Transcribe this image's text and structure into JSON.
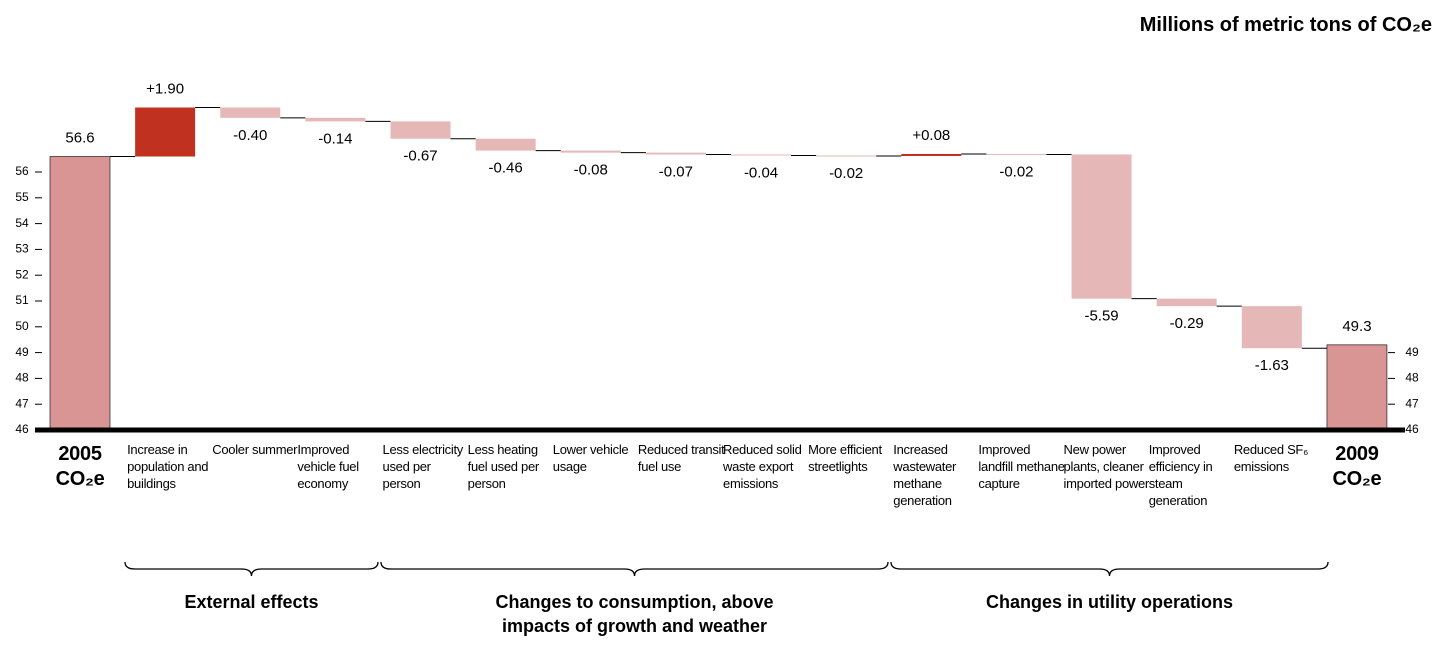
{
  "chart_data": {
    "type": "waterfall",
    "title": "Millions of metric tons of CO₂e",
    "categories": [
      "2005 CO₂e",
      "Increase in population and buildings",
      "Cooler summer",
      "Improved vehicle fuel economy",
      "Less electricity used per person",
      "Less heating fuel used per person",
      "Lower vehicle usage",
      "Reduced transit fuel use",
      "Reduced solid waste export emissions",
      "More efficient streetlights",
      "Increased wastewater methane generation",
      "Improved landfill methane capture",
      "New power plants, cleaner imported power",
      "Improved efficiency in steam generation",
      "Reduced SF₆ emissions",
      "2009 CO₂e"
    ],
    "values": [
      56.6,
      1.9,
      -0.4,
      -0.14,
      -0.67,
      -0.46,
      -0.08,
      -0.07,
      -0.04,
      -0.02,
      0.08,
      -0.02,
      -5.59,
      -0.29,
      -1.63,
      49.3
    ],
    "value_labels": [
      "56.6",
      "+1.90",
      "-0.40",
      "-0.14",
      "-0.67",
      "-0.46",
      "-0.08",
      "-0.07",
      "-0.04",
      "-0.02",
      "+0.08",
      "-0.02",
      "-5.59",
      "-0.29",
      "-1.63",
      "49.3"
    ],
    "colors": {
      "total": "#d99594",
      "increase": "#c0321f",
      "decrease": "#e6b7b7"
    },
    "ylim": [
      46,
      60
    ],
    "yticks": [
      46,
      47,
      48,
      49,
      50,
      51,
      52,
      53,
      54,
      55,
      56
    ],
    "y2lim": [
      46,
      60
    ],
    "y2ticks": [
      46,
      47,
      48,
      49
    ],
    "groups": [
      "External effects",
      "Changes to consumption, above impacts of growth and weather",
      "Changes in utility operations"
    ]
  }
}
